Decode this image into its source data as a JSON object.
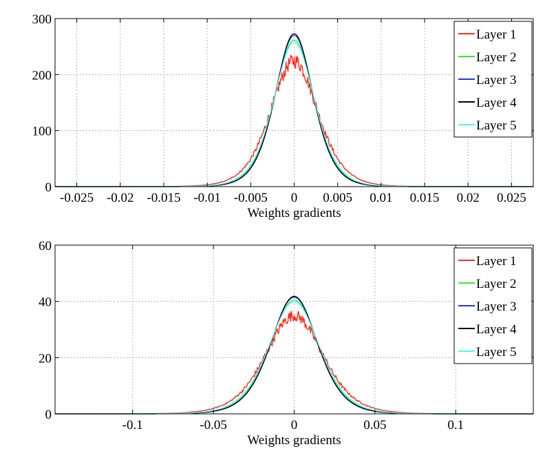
{
  "chart_data": [
    {
      "type": "line",
      "title": "",
      "xlabel": "Weights gradients",
      "ylabel": "",
      "xlim": [
        -0.0275,
        0.0275
      ],
      "ylim": [
        0,
        300
      ],
      "xticks": [
        -0.025,
        -0.02,
        -0.015,
        -0.01,
        -0.005,
        0,
        0.005,
        0.01,
        0.015,
        0.02,
        0.025
      ],
      "xtick_labels": [
        "-0.025",
        "-0.02",
        "-0.015",
        "-0.01",
        "-0.005",
        "0",
        "0.005",
        "0.01",
        "0.015",
        "0.02",
        "0.025"
      ],
      "yticks": [
        0,
        100,
        200,
        300
      ],
      "ytick_labels": [
        "0",
        "100",
        "200",
        "300"
      ],
      "grid": true,
      "legend_position": "top-right",
      "series": [
        {
          "name": "Layer 1",
          "color": "#ff2a1a",
          "peak": 225,
          "scale": 0.0021,
          "noise": true
        },
        {
          "name": "Layer 2",
          "color": "#33ee33",
          "peak": 262,
          "scale": 0.00178,
          "noise": false
        },
        {
          "name": "Layer 3",
          "color": "#1a33ff",
          "peak": 270,
          "scale": 0.00172,
          "noise": false
        },
        {
          "name": "Layer 4",
          "color": "#000000",
          "peak": 273,
          "scale": 0.0017,
          "noise": false
        },
        {
          "name": "Layer 5",
          "color": "#44ffff",
          "peak": 258,
          "scale": 0.00182,
          "noise": false
        }
      ]
    },
    {
      "type": "line",
      "title": "",
      "xlabel": "Weights gradients",
      "ylabel": "",
      "xlim": [
        -0.148,
        0.148
      ],
      "ylim": [
        0,
        60
      ],
      "xticks": [
        -0.1,
        -0.05,
        0,
        0.05,
        0.1
      ],
      "xtick_labels": [
        "-0.1",
        "-0.05",
        "0",
        "0.05",
        "0.1"
      ],
      "yticks": [
        0,
        20,
        40,
        60
      ],
      "ytick_labels": [
        "0",
        "20",
        "40",
        "60"
      ],
      "grid": true,
      "legend_position": "top-right",
      "series": [
        {
          "name": "Layer 1",
          "color": "#ff2a1a",
          "peak": 35,
          "scale": 0.0138,
          "noise": true
        },
        {
          "name": "Layer 2",
          "color": "#33ee33",
          "peak": 40.5,
          "scale": 0.0118,
          "noise": false
        },
        {
          "name": "Layer 3",
          "color": "#1a33ff",
          "peak": 41.5,
          "scale": 0.0114,
          "noise": false
        },
        {
          "name": "Layer 4",
          "color": "#000000",
          "peak": 41.8,
          "scale": 0.0113,
          "noise": false
        },
        {
          "name": "Layer 5",
          "color": "#44ffff",
          "peak": 40,
          "scale": 0.0121,
          "noise": false
        }
      ]
    }
  ]
}
